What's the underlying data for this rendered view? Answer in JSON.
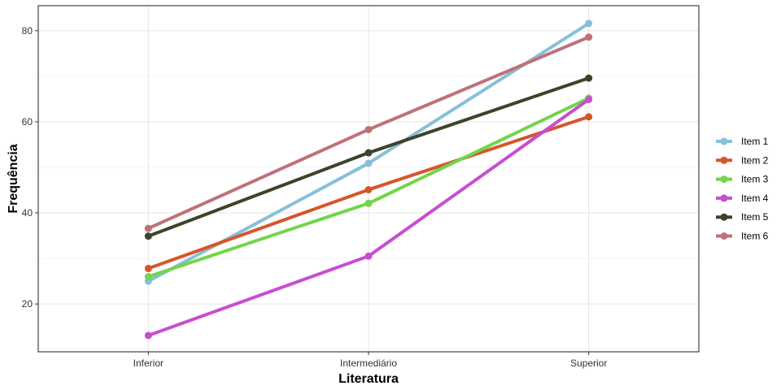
{
  "chart_data": {
    "type": "line",
    "title": "",
    "xlabel": "Literatura",
    "ylabel": "Frequência",
    "categories": [
      "Inferior",
      "Intermediário",
      "Superior"
    ],
    "ylim": [
      9.5,
      85.5
    ],
    "yticks": [
      20,
      40,
      60,
      80
    ],
    "grid": true,
    "legend_position": "right",
    "series": [
      {
        "name": "Item 1",
        "color": "#86C0DA",
        "values": [
          25.0,
          50.9,
          81.6
        ]
      },
      {
        "name": "Item 2",
        "color": "#D6562A",
        "values": [
          27.8,
          45.1,
          61.1
        ]
      },
      {
        "name": "Item 3",
        "color": "#72D54A",
        "values": [
          26.0,
          42.1,
          65.2
        ]
      },
      {
        "name": "Item 4",
        "color": "#C84DD0",
        "values": [
          13.1,
          30.5,
          64.9
        ]
      },
      {
        "name": "Item 5",
        "color": "#3C4427",
        "values": [
          34.9,
          53.2,
          69.6
        ]
      },
      {
        "name": "Item 6",
        "color": "#BF7179",
        "values": [
          36.6,
          58.3,
          78.6
        ]
      }
    ]
  }
}
